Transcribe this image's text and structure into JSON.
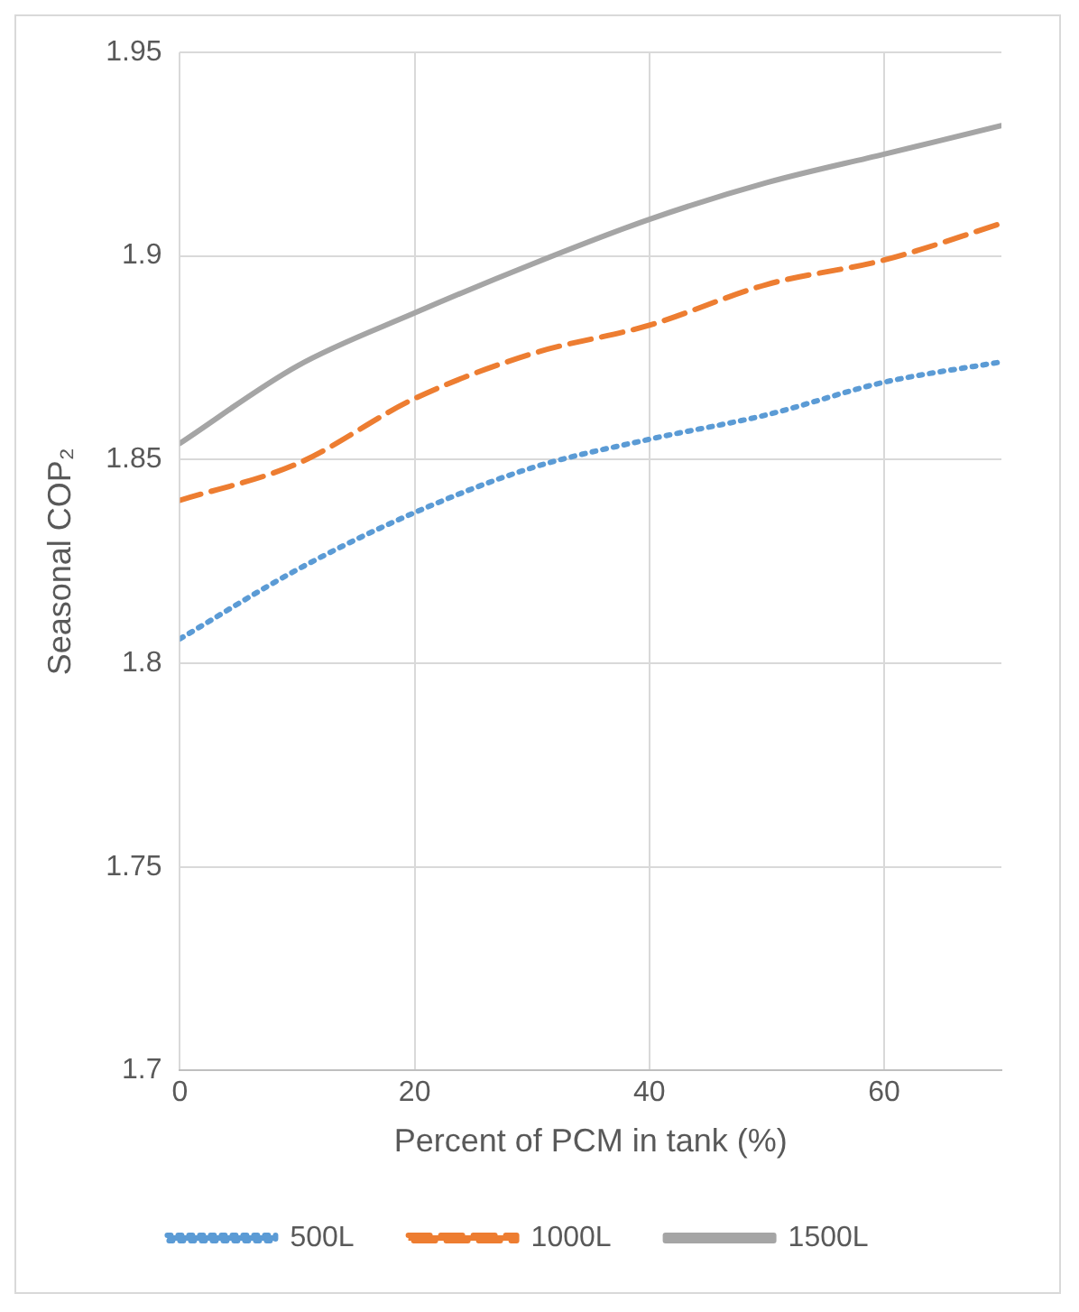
{
  "chart_data": {
    "type": "line",
    "xlabel": "Percent of PCM in tank (%)",
    "ylabel": "Seasonal COP₂",
    "x": [
      0,
      10,
      20,
      30,
      40,
      50,
      60,
      70
    ],
    "series": [
      {
        "name": "500L",
        "color": "#5b9bd5",
        "line_style": "dotted",
        "values": [
          1.806,
          1.823,
          1.837,
          1.848,
          1.855,
          1.861,
          1.869,
          1.874
        ]
      },
      {
        "name": "1000L",
        "color": "#ed7d31",
        "line_style": "dashed",
        "values": [
          1.84,
          1.849,
          1.865,
          1.876,
          1.883,
          1.893,
          1.899,
          1.908
        ]
      },
      {
        "name": "1500L",
        "color": "#a5a5a5",
        "line_style": "solid",
        "values": [
          1.854,
          1.873,
          1.886,
          1.898,
          1.909,
          1.918,
          1.925,
          1.932
        ]
      }
    ],
    "xlim": [
      0,
      70
    ],
    "xticks": [
      0,
      20,
      40,
      60
    ],
    "ylim": [
      1.7,
      1.95
    ],
    "yticks": [
      1.7,
      1.75,
      1.8,
      1.85,
      1.9,
      1.95
    ],
    "grid": true,
    "legend": "bottom",
    "marker": "none"
  }
}
